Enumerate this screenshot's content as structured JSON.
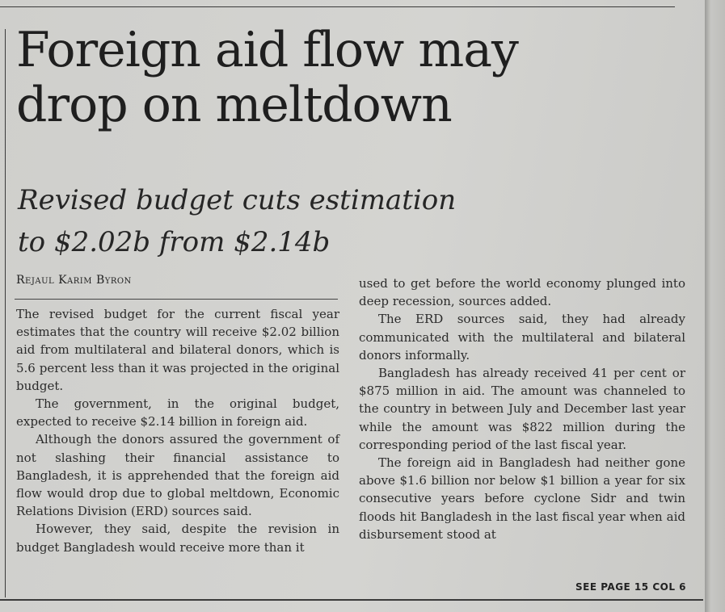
{
  "headline": {
    "line1": "Foreign aid flow may",
    "line2": "drop on meltdown"
  },
  "subhead": {
    "line1": "Revised budget cuts estimation",
    "line2": "to $2.02b from $2.14b"
  },
  "byline": "Rejaul Karim Byron",
  "left_column": [
    "The revised budget for the current fiscal year estimates that the country will receive $2.02 billion aid from multilateral and bilateral donors, which is 5.6 percent less than it was projected in the original budget.",
    "The government, in the original budget, expected to receive $2.14 billion in foreign aid.",
    "Although the donors assured the government of not slashing their financial assistance to Bangladesh, it is apprehended that the foreign aid flow would drop due to global meltdown, Economic Relations Division (ERD) sources said.",
    "However, they said, despite the revision in budget Bangladesh would receive more than it"
  ],
  "right_column": [
    "used to get before the world economy plunged into deep recession, sources added.",
    "The ERD sources said, they had already communicated with the multilateral and bilateral donors informally.",
    "Bangladesh has already received 41 per cent or $875 million in aid. The amount was channeled to the country in between July and December last year while the amount was $822 million during the corresponding period of the last fiscal year.",
    "The foreign aid in Bangladesh had neither gone above $1.6 billion nor below $1 billion a year for six consecutive years before cyclone Sidr and twin floods hit Bangladesh in the last fiscal year when aid disbursement stood at"
  ],
  "continuation": "SEE PAGE 15 COL 6"
}
